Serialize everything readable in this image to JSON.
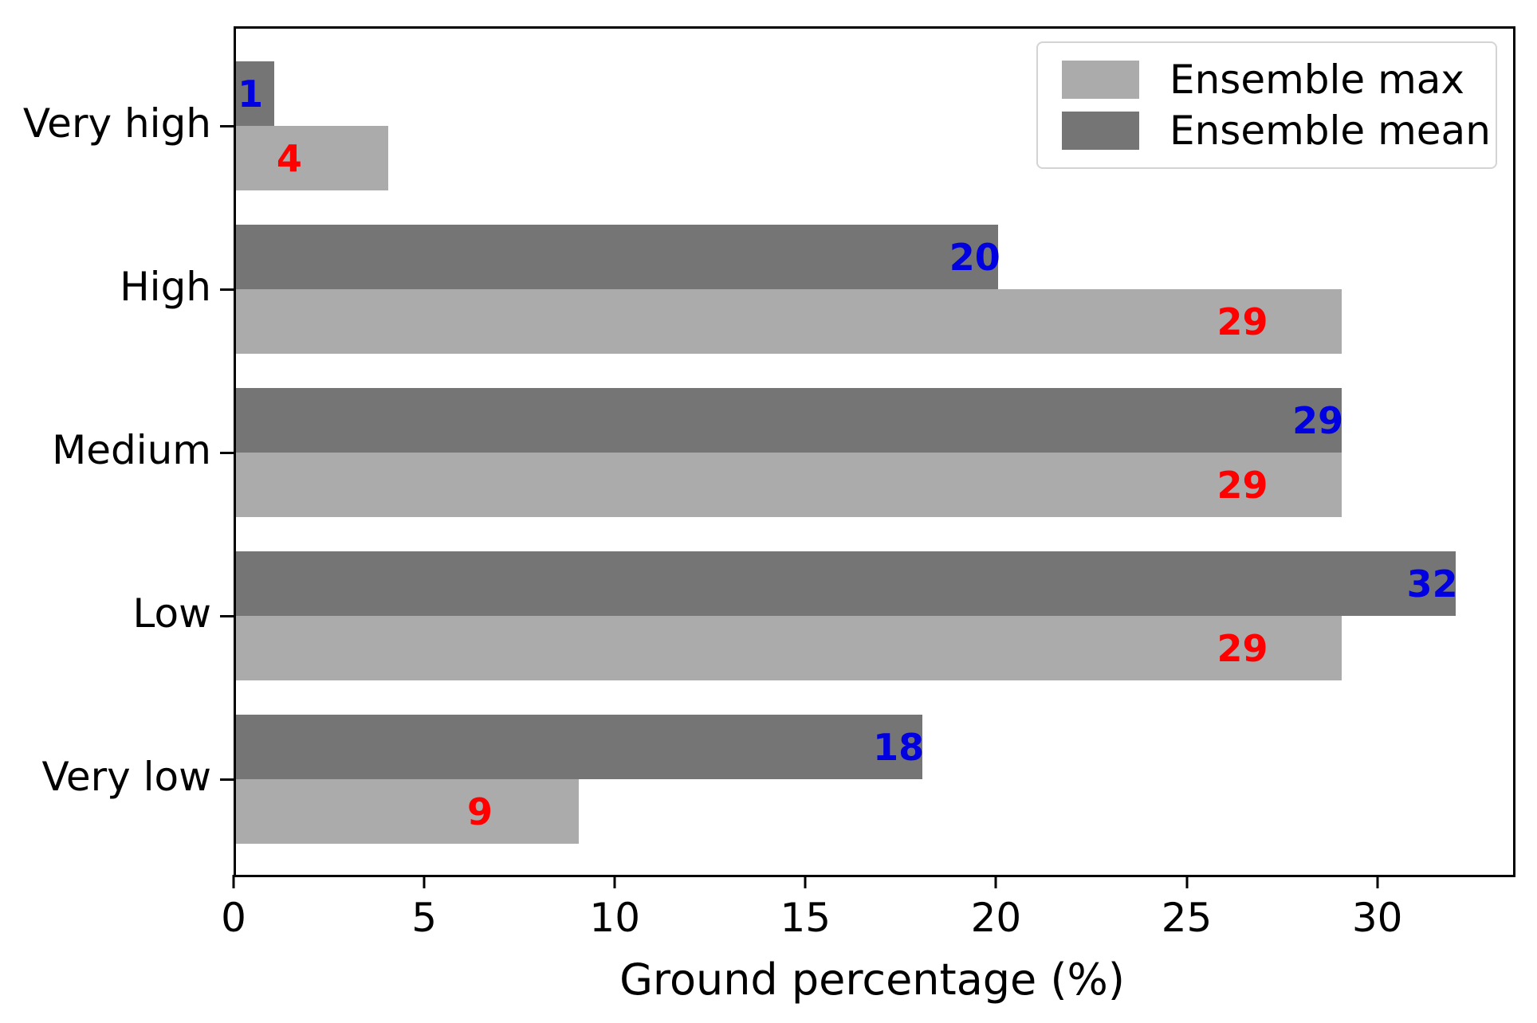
{
  "chart_data": {
    "type": "bar",
    "orientation": "horizontal",
    "title": "",
    "xlabel": "Ground percentage (%)",
    "ylabel": "",
    "categories": [
      "Very high",
      "High",
      "Medium",
      "Low",
      "Very low"
    ],
    "series": [
      {
        "name": "Ensemble mean",
        "values": [
          1,
          20,
          29,
          32,
          18
        ],
        "bar_color": "#757575",
        "label_color": "#0000e0",
        "group_position": "above-center"
      },
      {
        "name": "Ensemble max",
        "values": [
          4,
          29,
          29,
          29,
          9
        ],
        "bar_color": "#ababab",
        "label_color": "#ff0000",
        "group_position": "below-center"
      }
    ],
    "x_ticks": [
      0,
      5,
      10,
      15,
      20,
      25,
      30
    ],
    "xlim": [
      0,
      33.5
    ],
    "grid": false,
    "legend": {
      "position": "upper right",
      "entries": [
        {
          "label": "Ensemble max",
          "color": "#ababab"
        },
        {
          "label": "Ensemble mean",
          "color": "#757575"
        }
      ]
    },
    "axis_color": "#000000",
    "background_color": "#ffffff"
  }
}
